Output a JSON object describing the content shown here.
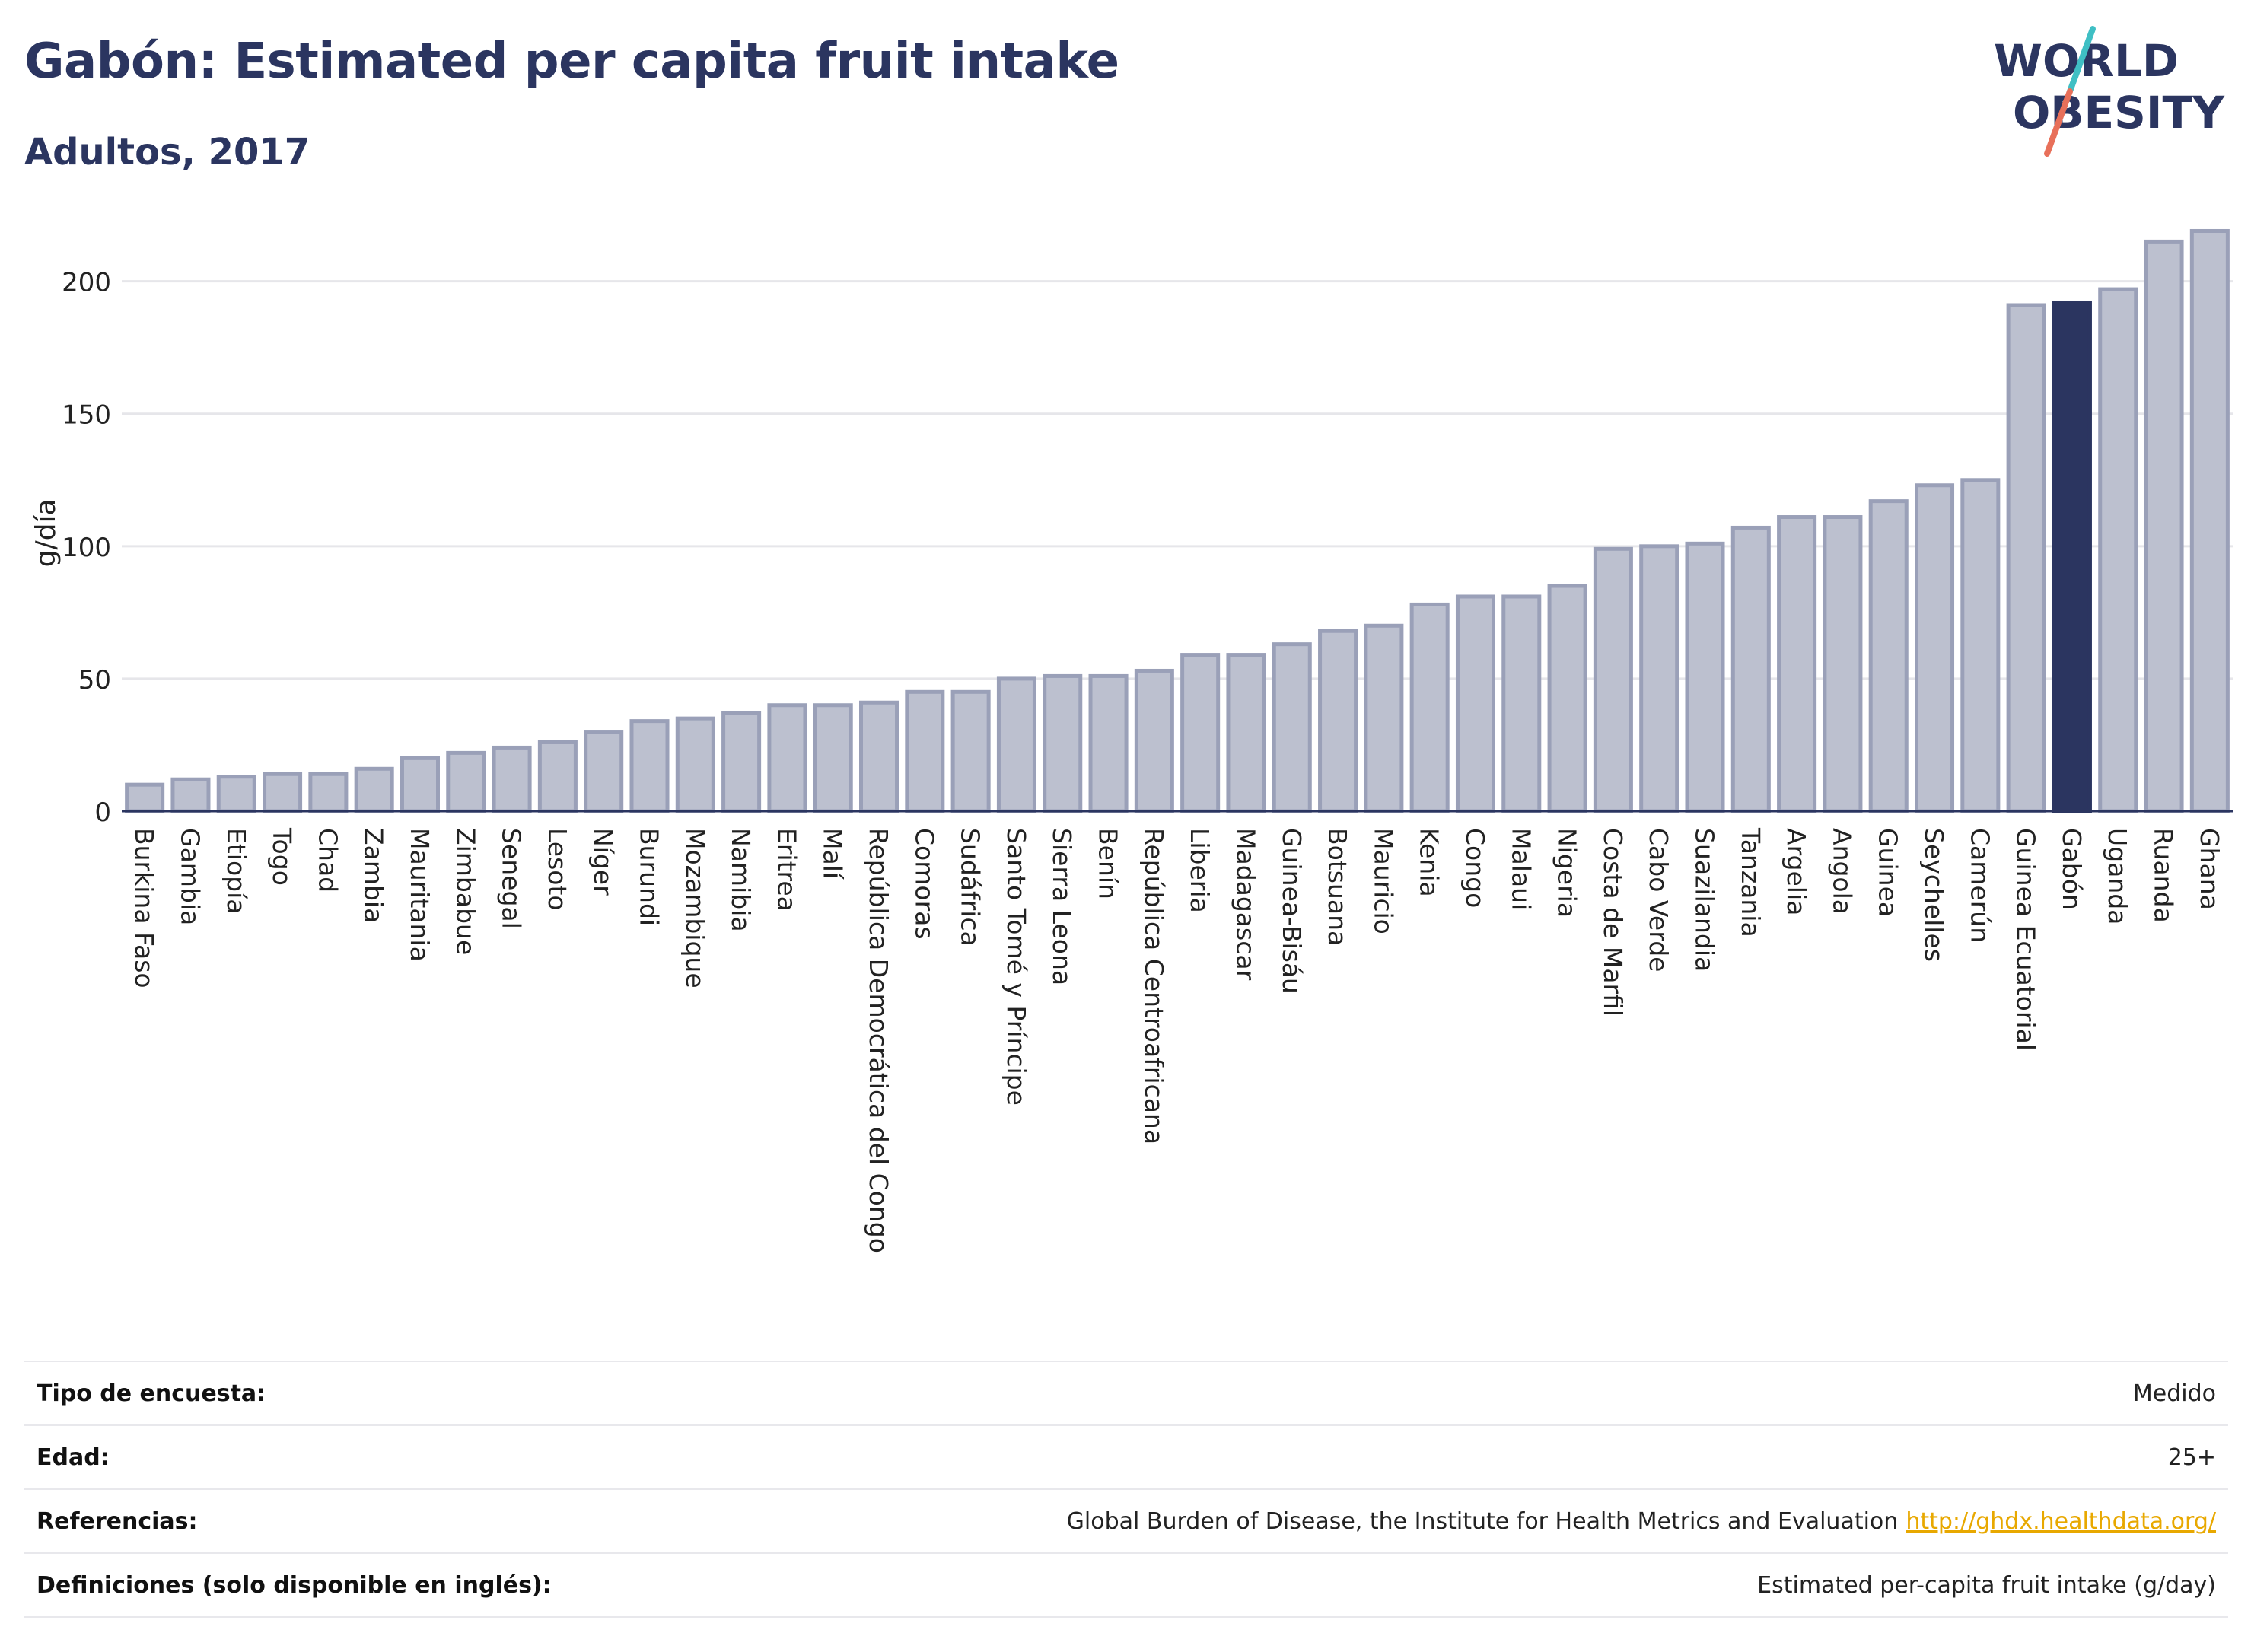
{
  "header": {
    "title": "Gabón: Estimated per capita fruit intake",
    "subtitle": "Adultos, 2017"
  },
  "logo": {
    "line1": "WORLD",
    "line2": "OBESITY",
    "colors": {
      "text": "#2b3560",
      "slash_teal": "#3fbfc4",
      "slash_coral": "#e8705a"
    }
  },
  "colors": {
    "bar_fill": "#bcc0cf",
    "bar_stroke": "#9aa0b8",
    "highlight_fill": "#2b3560",
    "axis_text": "#222222",
    "grid": "#e6e6ea"
  },
  "chart_data": {
    "type": "bar",
    "ylabel": "g/día",
    "ylim": [
      0,
      220
    ],
    "yticks": [
      0,
      50,
      100,
      150,
      200
    ],
    "grid": true,
    "highlight": "Gabón",
    "categories": [
      "Burkina Faso",
      "Gambia",
      "Etiopía",
      "Togo",
      "Chad",
      "Zambia",
      "Mauritania",
      "Zimbabue",
      "Senegal",
      "Lesoto",
      "Níger",
      "Burundi",
      "Mozambique",
      "Namibia",
      "Eritrea",
      "Malí",
      "República Democrática del Congo",
      "Comoras",
      "Sudáfrica",
      "Santo Tomé y Príncipe",
      "Sierra Leona",
      "Benín",
      "República Centroafricana",
      "Liberia",
      "Madagascar",
      "Guinea-Bisáu",
      "Botsuana",
      "Mauricio",
      "Kenia",
      "Congo",
      "Malaui",
      "Nigeria",
      "Costa de Marfil",
      "Cabo Verde",
      "Suazilandia",
      "Tanzania",
      "Argelia",
      "Angola",
      "Guinea",
      "Seychelles",
      "Camerún",
      "Guinea Ecuatorial",
      "Gabón",
      "Uganda",
      "Ruanda",
      "Ghana"
    ],
    "values": [
      10,
      12,
      13,
      14,
      14,
      16,
      20,
      22,
      24,
      26,
      30,
      34,
      35,
      37,
      40,
      40,
      41,
      45,
      45,
      50,
      51,
      51,
      53,
      59,
      59,
      63,
      68,
      70,
      78,
      81,
      81,
      85,
      99,
      100,
      101,
      107,
      111,
      111,
      117,
      123,
      125,
      191,
      192,
      197,
      215,
      219
    ]
  },
  "info": [
    {
      "label": "Tipo de encuesta:",
      "value": "Medido",
      "link": ""
    },
    {
      "label": "Edad:",
      "value": "25+",
      "link": ""
    },
    {
      "label": "Referencias:",
      "value": "Global Burden of Disease, the Institute for Health Metrics and Evaluation",
      "link": "http://ghdx.healthdata.org/"
    },
    {
      "label": "Definiciones (solo disponible en inglés):",
      "value": "Estimated per-capita fruit intake (g/day)",
      "link": ""
    }
  ]
}
